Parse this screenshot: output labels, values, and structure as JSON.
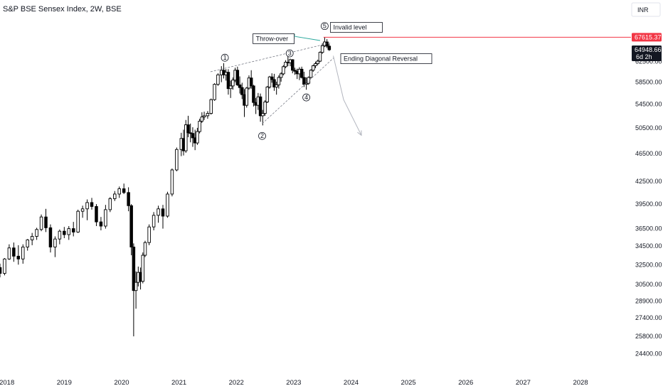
{
  "chart_data": {
    "type": "candlestick",
    "title": "S&P BSE Sensex Index, 2W, BSE",
    "currency": "INR",
    "y_scale": "log",
    "ylim": [
      23600,
      71500
    ],
    "xlim": [
      2017.88,
      2028.88
    ],
    "y_ticks": [
      "24400.00",
      "25800.00",
      "27400.00",
      "28900.00",
      "30500.00",
      "32500.00",
      "34500.00",
      "36500.00",
      "39500.00",
      "42500.00",
      "46500.00",
      "50500.00",
      "54500.00",
      "58500.00",
      "62500.00"
    ],
    "y_tick_values": [
      24400,
      25800,
      27400,
      28900,
      30500,
      32500,
      34500,
      36500,
      39500,
      42500,
      46500,
      50500,
      54500,
      58500,
      62500
    ],
    "x_ticks": [
      "2018",
      "2019",
      "2020",
      "2021",
      "2022",
      "2023",
      "2024",
      "2025",
      "2026",
      "2027",
      "2028"
    ],
    "x_tick_values": [
      2018,
      2019,
      2020,
      2021,
      2022,
      2023,
      2024,
      2025,
      2026,
      2027,
      2028
    ],
    "price_labels": [
      {
        "text": "67615.37",
        "value": 67615.37,
        "color": "#f23645"
      },
      {
        "text": "64948.66",
        "sub": "6d 2h",
        "value": 64948.66,
        "color": "#131722"
      }
    ],
    "invalid_level": 67615.37,
    "waves": [
      {
        "label": "1",
        "x": 2021.8,
        "y": 63300
      },
      {
        "label": "2",
        "x": 2022.45,
        "y": 49200
      },
      {
        "label": "3",
        "x": 2022.93,
        "y": 64200
      },
      {
        "label": "4",
        "x": 2023.22,
        "y": 55700
      },
      {
        "label": "5",
        "x": 2023.54,
        "y": 70100
      }
    ],
    "annotations": [
      {
        "text": "Throw-over",
        "x": 2022.29,
        "y": 67300
      },
      {
        "text": "Invalid level",
        "x": 2023.64,
        "y": 69800
      },
      {
        "text": "Ending Diagonal Reversal",
        "x": 2023.82,
        "y": 63100
      }
    ],
    "trendlines": [
      {
        "from": [
          2021.55,
          60500
        ],
        "to": [
          2023.64,
          66400
        ]
      },
      {
        "from": [
          2022.45,
          51200
        ],
        "to": [
          2023.7,
          63300
        ]
      }
    ],
    "projection": {
      "from": [
        2023.69,
        63700
      ],
      "mid": [
        2023.87,
        55300
      ],
      "to": [
        2024.18,
        49300
      ]
    },
    "throw_over_arrow": {
      "from": [
        2023.46,
        66900
      ],
      "to": [
        2022.97,
        67900
      ]
    },
    "series": [
      {
        "x": 2017.88,
        "open": 32200,
        "high": 32600,
        "low": 31200,
        "close": 31600
      },
      {
        "x": 2017.96,
        "open": 31600,
        "high": 33200,
        "low": 31400,
        "close": 33100
      },
      {
        "x": 2018.04,
        "open": 33100,
        "high": 34700,
        "low": 33000,
        "close": 34300
      },
      {
        "x": 2018.12,
        "open": 34300,
        "high": 34900,
        "low": 32800,
        "close": 33400
      },
      {
        "x": 2018.2,
        "open": 33400,
        "high": 34600,
        "low": 32500,
        "close": 33100
      },
      {
        "x": 2018.28,
        "open": 33100,
        "high": 34700,
        "low": 32600,
        "close": 34400
      },
      {
        "x": 2018.36,
        "open": 34400,
        "high": 35300,
        "low": 34000,
        "close": 35200
      },
      {
        "x": 2018.44,
        "open": 35200,
        "high": 36000,
        "low": 34600,
        "close": 35600
      },
      {
        "x": 2018.52,
        "open": 35600,
        "high": 36600,
        "low": 35200,
        "close": 36400
      },
      {
        "x": 2018.6,
        "open": 36400,
        "high": 38200,
        "low": 36200,
        "close": 37900
      },
      {
        "x": 2018.68,
        "open": 37900,
        "high": 38900,
        "low": 36100,
        "close": 36600
      },
      {
        "x": 2018.76,
        "open": 36600,
        "high": 37000,
        "low": 33800,
        "close": 34400
      },
      {
        "x": 2018.84,
        "open": 34400,
        "high": 35600,
        "low": 33300,
        "close": 35300
      },
      {
        "x": 2018.92,
        "open": 35300,
        "high": 36400,
        "low": 34700,
        "close": 36200
      },
      {
        "x": 2019.0,
        "open": 36200,
        "high": 36700,
        "low": 35400,
        "close": 35800
      },
      {
        "x": 2019.08,
        "open": 35800,
        "high": 36800,
        "low": 35200,
        "close": 36500
      },
      {
        "x": 2019.16,
        "open": 36500,
        "high": 37300,
        "low": 35600,
        "close": 36100
      },
      {
        "x": 2019.24,
        "open": 36100,
        "high": 38800,
        "low": 36000,
        "close": 38600
      },
      {
        "x": 2019.32,
        "open": 38600,
        "high": 39300,
        "low": 37800,
        "close": 38900
      },
      {
        "x": 2019.4,
        "open": 38900,
        "high": 40100,
        "low": 37500,
        "close": 39700
      },
      {
        "x": 2019.48,
        "open": 39700,
        "high": 40300,
        "low": 38800,
        "close": 39200
      },
      {
        "x": 2019.56,
        "open": 39200,
        "high": 39500,
        "low": 36800,
        "close": 37300
      },
      {
        "x": 2019.64,
        "open": 37300,
        "high": 37900,
        "low": 36300,
        "close": 36800
      },
      {
        "x": 2019.72,
        "open": 36800,
        "high": 39400,
        "low": 36500,
        "close": 38800
      },
      {
        "x": 2019.8,
        "open": 38800,
        "high": 40400,
        "low": 38500,
        "close": 40200
      },
      {
        "x": 2019.88,
        "open": 40200,
        "high": 41200,
        "low": 39900,
        "close": 40800
      },
      {
        "x": 2019.96,
        "open": 40800,
        "high": 41800,
        "low": 40300,
        "close": 41500
      },
      {
        "x": 2020.04,
        "open": 41500,
        "high": 42200,
        "low": 40800,
        "close": 41000
      },
      {
        "x": 2020.12,
        "open": 41000,
        "high": 41700,
        "low": 38600,
        "close": 39300
      },
      {
        "x": 2020.17,
        "open": 39300,
        "high": 39500,
        "low": 33500,
        "close": 34400
      },
      {
        "x": 2020.21,
        "open": 34400,
        "high": 34800,
        "low": 25800,
        "close": 29900
      },
      {
        "x": 2020.25,
        "open": 29900,
        "high": 31800,
        "low": 28200,
        "close": 30700
      },
      {
        "x": 2020.29,
        "open": 30700,
        "high": 32300,
        "low": 30300,
        "close": 31700
      },
      {
        "x": 2020.33,
        "open": 31700,
        "high": 32200,
        "low": 30000,
        "close": 30800
      },
      {
        "x": 2020.37,
        "open": 30800,
        "high": 33800,
        "low": 30600,
        "close": 33500
      },
      {
        "x": 2020.41,
        "open": 33500,
        "high": 35100,
        "low": 33300,
        "close": 34900
      },
      {
        "x": 2020.48,
        "open": 34900,
        "high": 37000,
        "low": 34600,
        "close": 36700
      },
      {
        "x": 2020.56,
        "open": 36700,
        "high": 38500,
        "low": 36300,
        "close": 38100
      },
      {
        "x": 2020.64,
        "open": 38100,
        "high": 39300,
        "low": 37200,
        "close": 38900
      },
      {
        "x": 2020.72,
        "open": 38900,
        "high": 39400,
        "low": 36500,
        "close": 38000
      },
      {
        "x": 2020.8,
        "open": 38000,
        "high": 41100,
        "low": 37800,
        "close": 40800
      },
      {
        "x": 2020.88,
        "open": 40800,
        "high": 44300,
        "low": 40500,
        "close": 44100
      },
      {
        "x": 2020.96,
        "open": 44100,
        "high": 47400,
        "low": 43900,
        "close": 47100
      },
      {
        "x": 2021.04,
        "open": 47100,
        "high": 49700,
        "low": 46100,
        "close": 48800
      },
      {
        "x": 2021.08,
        "open": 48800,
        "high": 50200,
        "low": 46200,
        "close": 46900
      },
      {
        "x": 2021.12,
        "open": 46900,
        "high": 51800,
        "low": 46600,
        "close": 51000
      },
      {
        "x": 2021.16,
        "open": 51000,
        "high": 52500,
        "low": 49000,
        "close": 49700
      },
      {
        "x": 2021.2,
        "open": 49700,
        "high": 51200,
        "low": 48200,
        "close": 49600
      },
      {
        "x": 2021.24,
        "open": 49600,
        "high": 50600,
        "low": 47500,
        "close": 48900
      },
      {
        "x": 2021.28,
        "open": 48900,
        "high": 50200,
        "low": 47000,
        "close": 48100
      },
      {
        "x": 2021.32,
        "open": 48100,
        "high": 50500,
        "low": 47800,
        "close": 49900
      },
      {
        "x": 2021.36,
        "open": 49900,
        "high": 52000,
        "low": 49600,
        "close": 51600
      },
      {
        "x": 2021.4,
        "open": 51600,
        "high": 53100,
        "low": 51300,
        "close": 52300
      },
      {
        "x": 2021.44,
        "open": 52300,
        "high": 53200,
        "low": 51800,
        "close": 52500
      },
      {
        "x": 2021.5,
        "open": 52500,
        "high": 53300,
        "low": 52000,
        "close": 52900
      },
      {
        "x": 2021.56,
        "open": 52900,
        "high": 55500,
        "low": 52700,
        "close": 55300
      },
      {
        "x": 2021.62,
        "open": 55300,
        "high": 58300,
        "low": 55100,
        "close": 58100
      },
      {
        "x": 2021.68,
        "open": 58100,
        "high": 60200,
        "low": 57800,
        "close": 59900
      },
      {
        "x": 2021.74,
        "open": 59900,
        "high": 61600,
        "low": 58500,
        "close": 60800
      },
      {
        "x": 2021.78,
        "open": 60800,
        "high": 62200,
        "low": 59200,
        "close": 59900
      },
      {
        "x": 2021.82,
        "open": 59900,
        "high": 61000,
        "low": 58800,
        "close": 60400
      },
      {
        "x": 2021.86,
        "open": 60400,
        "high": 61000,
        "low": 56200,
        "close": 57300
      },
      {
        "x": 2021.9,
        "open": 57300,
        "high": 58800,
        "low": 55600,
        "close": 57800
      },
      {
        "x": 2021.94,
        "open": 57800,
        "high": 59400,
        "low": 57100,
        "close": 58900
      },
      {
        "x": 2021.98,
        "open": 58900,
        "high": 61300,
        "low": 58500,
        "close": 60800
      },
      {
        "x": 2022.02,
        "open": 60800,
        "high": 61500,
        "low": 57800,
        "close": 58000
      },
      {
        "x": 2022.06,
        "open": 58000,
        "high": 59600,
        "low": 56400,
        "close": 57500
      },
      {
        "x": 2022.1,
        "open": 57500,
        "high": 58400,
        "low": 55400,
        "close": 56200
      },
      {
        "x": 2022.14,
        "open": 56200,
        "high": 57200,
        "low": 52300,
        "close": 54300
      },
      {
        "x": 2022.18,
        "open": 54300,
        "high": 57600,
        "low": 53900,
        "close": 57400
      },
      {
        "x": 2022.22,
        "open": 57400,
        "high": 59800,
        "low": 57100,
        "close": 59300
      },
      {
        "x": 2022.26,
        "open": 59300,
        "high": 60800,
        "low": 57300,
        "close": 57800
      },
      {
        "x": 2022.3,
        "open": 57800,
        "high": 58000,
        "low": 54100,
        "close": 54800
      },
      {
        "x": 2022.34,
        "open": 54800,
        "high": 55600,
        "low": 52800,
        "close": 54300
      },
      {
        "x": 2022.38,
        "open": 54300,
        "high": 56500,
        "low": 53500,
        "close": 55800
      },
      {
        "x": 2022.42,
        "open": 55800,
        "high": 56400,
        "low": 51500,
        "close": 52500
      },
      {
        "x": 2022.46,
        "open": 52500,
        "high": 53500,
        "low": 50900,
        "close": 52900
      },
      {
        "x": 2022.5,
        "open": 52900,
        "high": 55200,
        "low": 52500,
        "close": 54900
      },
      {
        "x": 2022.54,
        "open": 54900,
        "high": 57800,
        "low": 54700,
        "close": 57600
      },
      {
        "x": 2022.58,
        "open": 57600,
        "high": 59700,
        "low": 57300,
        "close": 59500
      },
      {
        "x": 2022.62,
        "open": 59500,
        "high": 60200,
        "low": 58400,
        "close": 59000
      },
      {
        "x": 2022.66,
        "open": 59000,
        "high": 60100,
        "low": 56900,
        "close": 57600
      },
      {
        "x": 2022.7,
        "open": 57600,
        "high": 58600,
        "low": 56200,
        "close": 58000
      },
      {
        "x": 2022.74,
        "open": 58000,
        "high": 59800,
        "low": 57300,
        "close": 59400
      },
      {
        "x": 2022.78,
        "open": 59400,
        "high": 60400,
        "low": 58600,
        "close": 60100
      },
      {
        "x": 2022.82,
        "open": 60100,
        "high": 61800,
        "low": 59800,
        "close": 61500
      },
      {
        "x": 2022.86,
        "open": 61500,
        "high": 62800,
        "low": 61200,
        "close": 62400
      },
      {
        "x": 2022.9,
        "open": 62400,
        "high": 63600,
        "low": 61600,
        "close": 62300
      },
      {
        "x": 2022.94,
        "open": 62300,
        "high": 63100,
        "low": 61600,
        "close": 62900
      },
      {
        "x": 2022.98,
        "open": 62900,
        "high": 63000,
        "low": 60200,
        "close": 60800
      },
      {
        "x": 2023.02,
        "open": 60800,
        "high": 61300,
        "low": 59900,
        "close": 60600
      },
      {
        "x": 2023.06,
        "open": 60600,
        "high": 61100,
        "low": 59100,
        "close": 60100
      },
      {
        "x": 2023.1,
        "open": 60100,
        "high": 61400,
        "low": 58900,
        "close": 61000
      },
      {
        "x": 2023.14,
        "open": 61000,
        "high": 61500,
        "low": 59200,
        "close": 59400
      },
      {
        "x": 2023.18,
        "open": 59400,
        "high": 60500,
        "low": 57600,
        "close": 58100
      },
      {
        "x": 2023.22,
        "open": 58100,
        "high": 59400,
        "low": 57100,
        "close": 58300
      },
      {
        "x": 2023.26,
        "open": 58300,
        "high": 59600,
        "low": 58000,
        "close": 59400
      },
      {
        "x": 2023.3,
        "open": 59400,
        "high": 61000,
        "low": 59200,
        "close": 60800
      },
      {
        "x": 2023.34,
        "open": 60800,
        "high": 61900,
        "low": 60500,
        "close": 61700
      },
      {
        "x": 2023.38,
        "open": 61700,
        "high": 62500,
        "low": 61200,
        "close": 62100
      },
      {
        "x": 2023.42,
        "open": 62100,
        "high": 62900,
        "low": 61800,
        "close": 62600
      },
      {
        "x": 2023.46,
        "open": 62600,
        "high": 64600,
        "low": 62400,
        "close": 64400
      },
      {
        "x": 2023.5,
        "open": 64400,
        "high": 66300,
        "low": 64100,
        "close": 65800
      },
      {
        "x": 2023.54,
        "open": 65800,
        "high": 67600,
        "low": 65500,
        "close": 66600
      },
      {
        "x": 2023.58,
        "open": 66600,
        "high": 67200,
        "low": 65300,
        "close": 65700
      },
      {
        "x": 2023.62,
        "open": 65700,
        "high": 66200,
        "low": 64700,
        "close": 64950
      }
    ]
  },
  "colors": {
    "line_red": "#f23645",
    "candle": "#000000",
    "arrow_teal": "#26a69a",
    "projection": "#b2b5be",
    "trendline": "#787b86",
    "axis_text": "#131722"
  }
}
